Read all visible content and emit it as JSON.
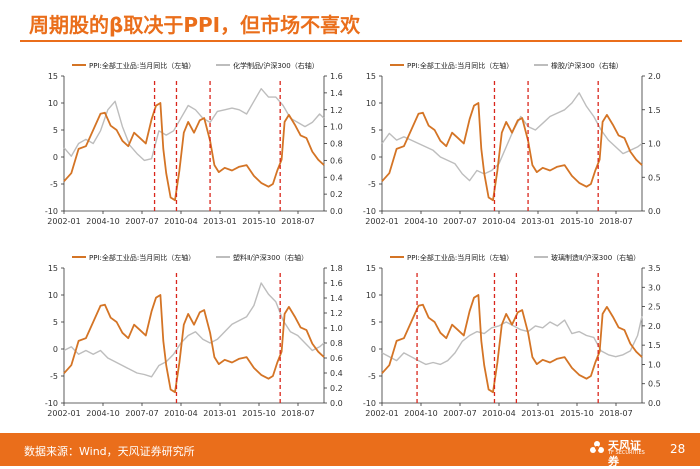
{
  "header": {
    "title": "周期股的β取决于PPI，但市场不喜欢"
  },
  "footer": {
    "source": "数据来源：Wind，天风证券研究所",
    "page": "28",
    "logo_text": "天风证券",
    "logo_sub": "TF SECURITIES"
  },
  "colors": {
    "accent": "#ea6e1b",
    "ppi": "#d47425",
    "ratio": "#bdbdbd",
    "event": "#d9261c",
    "axis": "#333333"
  },
  "chart_data": [
    {
      "type": "line",
      "x_ticks": [
        "2002-01",
        "2004-10",
        "2007-07",
        "2010-04",
        "2013-01",
        "2015-10",
        "2018-07"
      ],
      "x_range": [
        2002.0,
        2019.8
      ],
      "left_axis": {
        "ticks": [
          "15",
          "10",
          "5",
          "0",
          "-5",
          "-10"
        ],
        "range": [
          -10,
          15
        ]
      },
      "right_axis": {
        "ticks": [
          "1.6",
          "1.4",
          "1.2",
          "1.0",
          "0.8",
          "0.6",
          "0.4",
          "0.2",
          "0.0"
        ],
        "range": [
          0,
          1.6
        ]
      },
      "legend": [
        "PPI:全部工业品:当月同比（左轴）",
        "化学制品/沪深300（右轴）"
      ],
      "event_lines": [
        2008.2,
        2009.7,
        2012.0,
        2016.8
      ],
      "series": [
        {
          "name": "PPI:全部工业品:当月同比（左轴）",
          "axis": "left",
          "x": [
            2002.0,
            2002.5,
            2003.0,
            2003.5,
            2004.0,
            2004.5,
            2004.8,
            2005.2,
            2005.6,
            2006.0,
            2006.4,
            2006.8,
            2007.2,
            2007.6,
            2008.0,
            2008.3,
            2008.6,
            2008.8,
            2009.0,
            2009.3,
            2009.6,
            2009.9,
            2010.2,
            2010.5,
            2010.9,
            2011.3,
            2011.6,
            2012.0,
            2012.3,
            2012.6,
            2013.0,
            2013.5,
            2014.0,
            2014.5,
            2015.0,
            2015.5,
            2016.0,
            2016.3,
            2016.6,
            2016.9,
            2017.1,
            2017.4,
            2017.8,
            2018.2,
            2018.6,
            2019.0,
            2019.4,
            2019.8
          ],
          "values": [
            -4.5,
            -3.0,
            1.5,
            2.0,
            5.0,
            8.0,
            8.2,
            5.8,
            5.0,
            3.0,
            2.0,
            4.5,
            3.5,
            2.5,
            7.0,
            9.5,
            10.0,
            1.5,
            -3.0,
            -7.5,
            -8.0,
            -2.5,
            4.5,
            6.5,
            4.5,
            6.8,
            7.2,
            3.0,
            -1.5,
            -2.8,
            -2.0,
            -2.5,
            -1.8,
            -1.5,
            -3.5,
            -4.8,
            -5.5,
            -5.0,
            -2.5,
            -0.5,
            6.5,
            7.8,
            6.0,
            4.0,
            3.5,
            1.0,
            -0.5,
            -1.5
          ]
        },
        {
          "name": "化学制品/沪深300（右轴）",
          "axis": "right",
          "x": [
            2002.0,
            2002.5,
            2003.0,
            2003.5,
            2004.0,
            2004.5,
            2005.0,
            2005.5,
            2006.0,
            2006.5,
            2007.0,
            2007.5,
            2008.0,
            2008.5,
            2009.0,
            2009.5,
            2010.0,
            2010.5,
            2011.0,
            2011.5,
            2012.0,
            2012.5,
            2013.0,
            2013.5,
            2014.0,
            2014.5,
            2015.0,
            2015.5,
            2016.0,
            2016.5,
            2017.0,
            2017.5,
            2018.0,
            2018.5,
            2019.0,
            2019.5,
            2019.8
          ],
          "values": [
            0.75,
            0.65,
            0.8,
            0.85,
            0.8,
            0.95,
            1.2,
            1.3,
            1.0,
            0.78,
            0.68,
            0.6,
            0.62,
            0.95,
            0.9,
            0.95,
            1.1,
            1.25,
            1.2,
            1.1,
            1.05,
            1.18,
            1.2,
            1.22,
            1.2,
            1.15,
            1.3,
            1.45,
            1.35,
            1.35,
            1.25,
            1.1,
            1.05,
            1.0,
            1.05,
            1.15,
            1.1
          ]
        }
      ]
    },
    {
      "type": "line",
      "x_ticks": [
        "2002-01",
        "2004-10",
        "2007-07",
        "2010-04",
        "2013-01",
        "2015-10",
        "2018-07"
      ],
      "x_range": [
        2002.0,
        2019.8
      ],
      "left_axis": {
        "ticks": [
          "15",
          "10",
          "5",
          "0",
          "-5",
          "-10"
        ],
        "range": [
          -10,
          15
        ]
      },
      "right_axis": {
        "ticks": [
          "2.0",
          "1.5",
          "1.0",
          "0.5",
          "0.0"
        ],
        "range": [
          0,
          2.0
        ]
      },
      "legend": [
        "PPI:全部工业品:当月同比（左轴）",
        "橡胶/沪深300（右轴）"
      ],
      "event_lines": [
        2009.7,
        2012.0,
        2016.8
      ],
      "series": [
        {
          "name": "PPI:全部工业品:当月同比（左轴）",
          "axis": "left",
          "x": [
            2002.0,
            2002.5,
            2003.0,
            2003.5,
            2004.0,
            2004.5,
            2004.8,
            2005.2,
            2005.6,
            2006.0,
            2006.4,
            2006.8,
            2007.2,
            2007.6,
            2008.0,
            2008.3,
            2008.6,
            2008.8,
            2009.0,
            2009.3,
            2009.6,
            2009.9,
            2010.2,
            2010.5,
            2010.9,
            2011.3,
            2011.6,
            2012.0,
            2012.3,
            2012.6,
            2013.0,
            2013.5,
            2014.0,
            2014.5,
            2015.0,
            2015.5,
            2016.0,
            2016.3,
            2016.6,
            2016.9,
            2017.1,
            2017.4,
            2017.8,
            2018.2,
            2018.6,
            2019.0,
            2019.4,
            2019.8
          ],
          "values": [
            -4.5,
            -3.0,
            1.5,
            2.0,
            5.0,
            8.0,
            8.2,
            5.8,
            5.0,
            3.0,
            2.0,
            4.5,
            3.5,
            2.5,
            7.0,
            9.5,
            10.0,
            1.5,
            -3.0,
            -7.5,
            -8.0,
            -2.5,
            4.5,
            6.5,
            4.5,
            6.8,
            7.2,
            3.0,
            -1.5,
            -2.8,
            -2.0,
            -2.5,
            -1.8,
            -1.5,
            -3.5,
            -4.8,
            -5.5,
            -5.0,
            -2.5,
            -0.5,
            6.5,
            7.8,
            6.0,
            4.0,
            3.5,
            1.0,
            -0.5,
            -1.5
          ]
        },
        {
          "name": "橡胶/沪深300（右轴）",
          "axis": "right",
          "x": [
            2002.0,
            2002.5,
            2003.0,
            2003.5,
            2004.0,
            2004.5,
            2005.0,
            2005.5,
            2006.0,
            2006.5,
            2007.0,
            2007.5,
            2008.0,
            2008.5,
            2009.0,
            2009.5,
            2010.0,
            2010.5,
            2011.0,
            2011.5,
            2012.0,
            2012.5,
            2013.0,
            2013.5,
            2014.0,
            2014.5,
            2015.0,
            2015.5,
            2016.0,
            2016.5,
            2017.0,
            2017.5,
            2018.0,
            2018.5,
            2019.0,
            2019.5,
            2019.8
          ],
          "values": [
            1.0,
            1.15,
            1.05,
            1.1,
            1.05,
            1.0,
            0.95,
            0.9,
            0.8,
            0.75,
            0.7,
            0.55,
            0.45,
            0.6,
            0.55,
            0.6,
            0.7,
            0.95,
            1.2,
            1.4,
            1.25,
            1.2,
            1.3,
            1.4,
            1.45,
            1.5,
            1.6,
            1.75,
            1.55,
            1.4,
            1.2,
            1.05,
            0.95,
            0.85,
            0.9,
            0.95,
            1.0
          ]
        }
      ]
    },
    {
      "type": "line",
      "x_ticks": [
        "2002-01",
        "2004-10",
        "2007-07",
        "2010-04",
        "2013-01",
        "2015-10",
        "2018-07"
      ],
      "x_range": [
        2002.0,
        2019.8
      ],
      "left_axis": {
        "ticks": [
          "15",
          "10",
          "5",
          "0",
          "-5",
          "-10"
        ],
        "range": [
          -10,
          15
        ]
      },
      "right_axis": {
        "ticks": [
          "1.8",
          "1.6",
          "1.4",
          "1.2",
          "1.0",
          "0.8",
          "0.6",
          "0.4",
          "0.2",
          "0.0"
        ],
        "range": [
          0,
          1.8
        ]
      },
      "legend": [
        "PPI:全部工业品:当月同比（左轴）",
        "塑料Ⅱ/沪深300（右轴）"
      ],
      "event_lines": [
        2009.7,
        2016.8
      ],
      "series": [
        {
          "name": "PPI:全部工业品:当月同比（左轴）",
          "axis": "left",
          "x": [
            2002.0,
            2002.5,
            2003.0,
            2003.5,
            2004.0,
            2004.5,
            2004.8,
            2005.2,
            2005.6,
            2006.0,
            2006.4,
            2006.8,
            2007.2,
            2007.6,
            2008.0,
            2008.3,
            2008.6,
            2008.8,
            2009.0,
            2009.3,
            2009.6,
            2009.9,
            2010.2,
            2010.5,
            2010.9,
            2011.3,
            2011.6,
            2012.0,
            2012.3,
            2012.6,
            2013.0,
            2013.5,
            2014.0,
            2014.5,
            2015.0,
            2015.5,
            2016.0,
            2016.3,
            2016.6,
            2016.9,
            2017.1,
            2017.4,
            2017.8,
            2018.2,
            2018.6,
            2019.0,
            2019.4,
            2019.8
          ],
          "values": [
            -4.5,
            -3.0,
            1.5,
            2.0,
            5.0,
            8.0,
            8.2,
            5.8,
            5.0,
            3.0,
            2.0,
            4.5,
            3.5,
            2.5,
            7.0,
            9.5,
            10.0,
            1.5,
            -3.0,
            -7.5,
            -8.0,
            -2.5,
            4.5,
            6.5,
            4.5,
            6.8,
            7.2,
            3.0,
            -1.5,
            -2.8,
            -2.0,
            -2.5,
            -1.8,
            -1.5,
            -3.5,
            -4.8,
            -5.5,
            -5.0,
            -2.5,
            -0.5,
            6.5,
            7.8,
            6.0,
            4.0,
            3.5,
            1.0,
            -0.5,
            -1.5
          ]
        },
        {
          "name": "塑料Ⅱ/沪深300（右轴）",
          "axis": "right",
          "x": [
            2002.0,
            2002.5,
            2003.0,
            2003.5,
            2004.0,
            2004.5,
            2005.0,
            2005.5,
            2006.0,
            2006.5,
            2007.0,
            2007.5,
            2008.0,
            2008.5,
            2009.0,
            2009.5,
            2010.0,
            2010.5,
            2011.0,
            2011.5,
            2012.0,
            2012.5,
            2013.0,
            2013.5,
            2014.0,
            2014.5,
            2015.0,
            2015.5,
            2016.0,
            2016.5,
            2017.0,
            2017.5,
            2018.0,
            2018.5,
            2019.0,
            2019.5,
            2019.8
          ],
          "values": [
            0.7,
            0.75,
            0.65,
            0.7,
            0.65,
            0.7,
            0.6,
            0.55,
            0.5,
            0.45,
            0.4,
            0.38,
            0.35,
            0.5,
            0.55,
            0.65,
            0.8,
            0.9,
            0.95,
            0.85,
            0.8,
            0.85,
            0.95,
            1.05,
            1.1,
            1.15,
            1.3,
            1.6,
            1.45,
            1.35,
            1.1,
            0.95,
            0.9,
            0.8,
            0.7,
            0.75,
            0.8
          ]
        }
      ]
    },
    {
      "type": "line",
      "x_ticks": [
        "2002-01",
        "2004-10",
        "2007-07",
        "2010-04",
        "2013-01",
        "2015-10",
        "2018-07"
      ],
      "x_range": [
        2002.0,
        2019.8
      ],
      "left_axis": {
        "ticks": [
          "15",
          "10",
          "5",
          "0",
          "-5",
          "-10"
        ],
        "range": [
          -10,
          15
        ]
      },
      "right_axis": {
        "ticks": [
          "3.5",
          "3.0",
          "2.5",
          "2.0",
          "1.5",
          "1.0",
          "0.5",
          "0.0"
        ],
        "range": [
          0,
          3.5
        ]
      },
      "legend": [
        "PPI:全部工业品:当月同比（左轴）",
        "玻璃制造Ⅱ/沪深300（右轴）"
      ],
      "event_lines": [
        2004.4,
        2009.7,
        2011.2,
        2016.8
      ],
      "series": [
        {
          "name": "PPI:全部工业品:当月同比（左轴）",
          "axis": "left",
          "x": [
            2002.0,
            2002.5,
            2003.0,
            2003.5,
            2004.0,
            2004.5,
            2004.8,
            2005.2,
            2005.6,
            2006.0,
            2006.4,
            2006.8,
            2007.2,
            2007.6,
            2008.0,
            2008.3,
            2008.6,
            2008.8,
            2009.0,
            2009.3,
            2009.6,
            2009.9,
            2010.2,
            2010.5,
            2010.9,
            2011.3,
            2011.6,
            2012.0,
            2012.3,
            2012.6,
            2013.0,
            2013.5,
            2014.0,
            2014.5,
            2015.0,
            2015.5,
            2016.0,
            2016.3,
            2016.6,
            2016.9,
            2017.1,
            2017.4,
            2017.8,
            2018.2,
            2018.6,
            2019.0,
            2019.4,
            2019.8
          ],
          "values": [
            -4.5,
            -3.0,
            1.5,
            2.0,
            5.0,
            8.0,
            8.2,
            5.8,
            5.0,
            3.0,
            2.0,
            4.5,
            3.5,
            2.5,
            7.0,
            9.5,
            10.0,
            1.5,
            -3.0,
            -7.5,
            -8.0,
            -2.5,
            4.5,
            6.5,
            4.5,
            6.8,
            7.2,
            3.0,
            -1.5,
            -2.8,
            -2.0,
            -2.5,
            -1.8,
            -1.5,
            -3.5,
            -4.8,
            -5.5,
            -5.0,
            -2.5,
            -0.5,
            6.5,
            7.8,
            6.0,
            4.0,
            3.5,
            1.0,
            -0.5,
            -1.5
          ]
        },
        {
          "name": "玻璃制造Ⅱ/沪深300（右轴）",
          "axis": "right",
          "x": [
            2002.0,
            2002.5,
            2003.0,
            2003.5,
            2004.0,
            2004.5,
            2005.0,
            2005.5,
            2006.0,
            2006.5,
            2007.0,
            2007.5,
            2008.0,
            2008.5,
            2009.0,
            2009.5,
            2010.0,
            2010.5,
            2011.0,
            2011.5,
            2012.0,
            2012.5,
            2013.0,
            2013.5,
            2014.0,
            2014.5,
            2015.0,
            2015.5,
            2016.0,
            2016.5,
            2017.0,
            2017.5,
            2018.0,
            2018.5,
            2019.0,
            2019.5,
            2019.8
          ],
          "values": [
            1.3,
            1.2,
            1.1,
            1.3,
            1.2,
            1.1,
            1.0,
            1.05,
            1.0,
            1.1,
            1.3,
            1.6,
            1.75,
            1.85,
            1.8,
            1.95,
            2.0,
            2.1,
            2.0,
            1.9,
            1.85,
            2.0,
            1.95,
            2.1,
            2.0,
            2.15,
            1.8,
            1.85,
            1.75,
            1.7,
            1.35,
            1.25,
            1.2,
            1.25,
            1.35,
            1.75,
            2.25
          ]
        }
      ]
    }
  ]
}
